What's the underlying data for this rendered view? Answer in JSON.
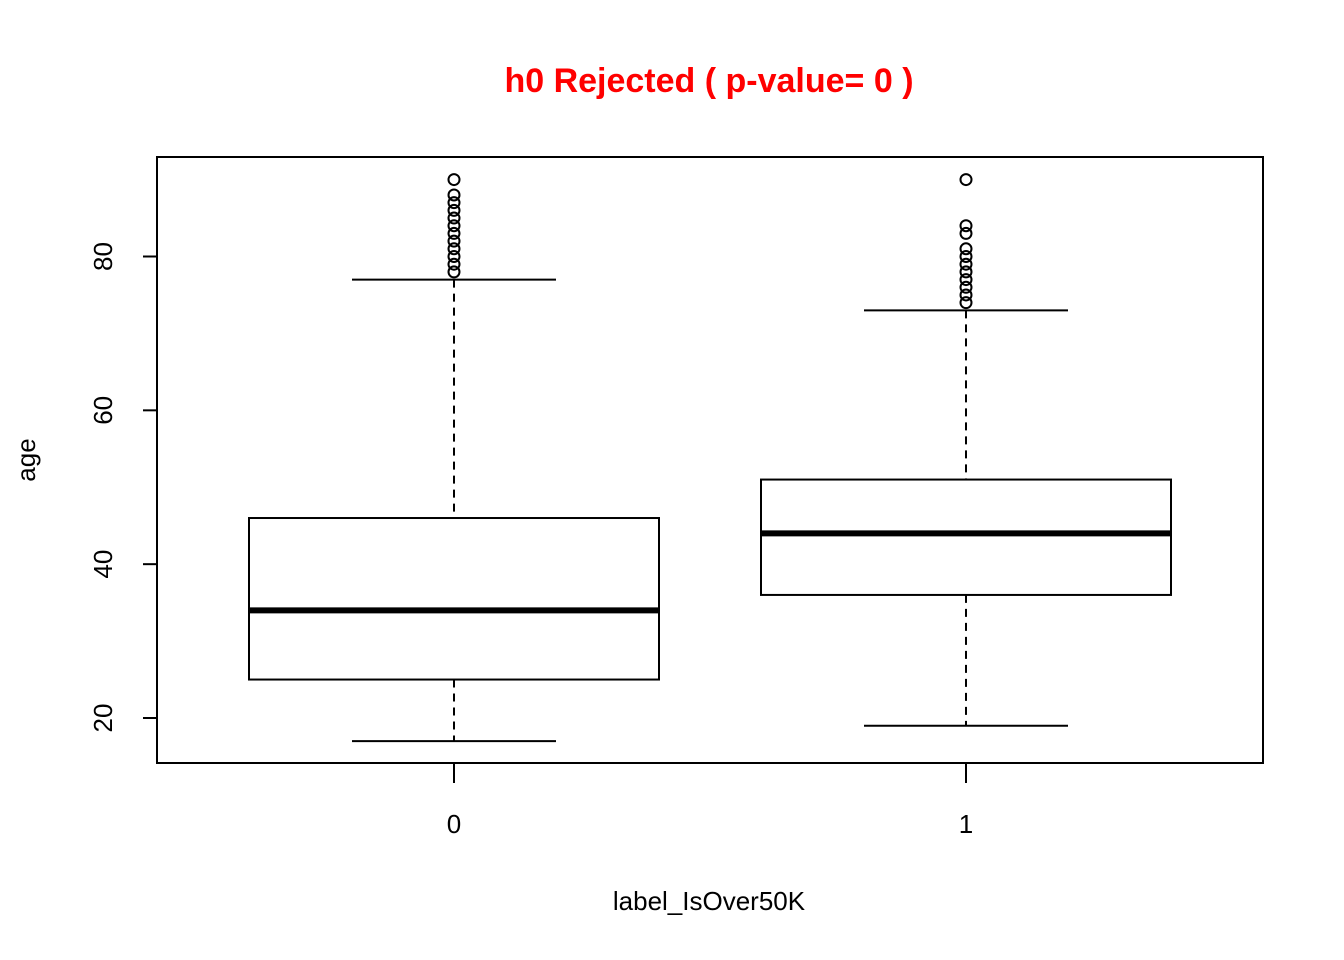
{
  "chart_data": {
    "type": "boxplot",
    "title": "h0 Rejected ( p-value= 0 )",
    "title_color": "#ff0000",
    "xlabel": "label_IsOver50K",
    "ylabel": "age",
    "categories": [
      "0",
      "1"
    ],
    "ylim": [
      13,
      92
    ],
    "yticks": [
      20,
      40,
      60,
      80
    ],
    "yticklabels": [
      "20",
      "40",
      "60",
      "80"
    ],
    "boxes": [
      {
        "category": "0",
        "whisker_low": 17,
        "q1": 25,
        "median": 34,
        "q3": 46,
        "whisker_high": 77,
        "outliers": [
          78,
          79,
          80,
          81,
          82,
          83,
          84,
          85,
          86,
          87,
          88,
          90
        ]
      },
      {
        "category": "1",
        "whisker_low": 19,
        "q1": 36,
        "median": 44,
        "q3": 51,
        "whisker_high": 73,
        "outliers": [
          74,
          75,
          76,
          77,
          78,
          79,
          80,
          81,
          83,
          84,
          90
        ]
      }
    ]
  }
}
